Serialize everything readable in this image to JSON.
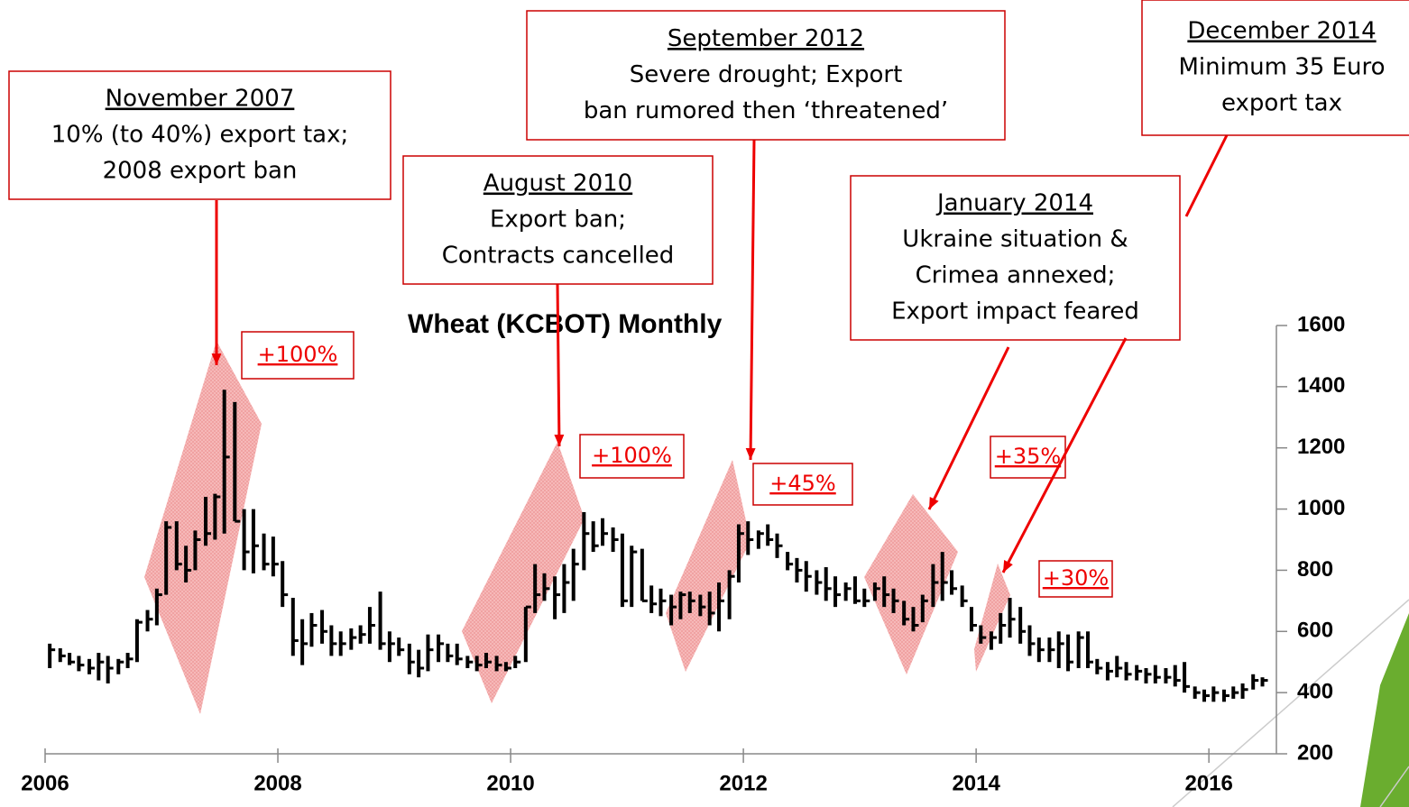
{
  "chart_data": {
    "type": "ohlc",
    "title": "Wheat (KCBOT) Monthly",
    "color": "#000000",
    "xlim": [
      2006,
      2016.58
    ],
    "xticks": [
      2006,
      2008,
      2010,
      2012,
      2014,
      2016
    ],
    "ylim": [
      200,
      1600
    ],
    "yticks": [
      200,
      400,
      600,
      800,
      1000,
      1200,
      1400,
      1600
    ],
    "x": [
      2006.04,
      2006.13,
      2006.21,
      2006.29,
      2006.38,
      2006.46,
      2006.54,
      2006.63,
      2006.71,
      2006.79,
      2006.88,
      2006.96,
      2007.04,
      2007.13,
      2007.21,
      2007.29,
      2007.38,
      2007.46,
      2007.54,
      2007.63,
      2007.71,
      2007.79,
      2007.88,
      2007.96,
      2008.04,
      2008.13,
      2008.21,
      2008.29,
      2008.38,
      2008.46,
      2008.54,
      2008.63,
      2008.71,
      2008.79,
      2008.88,
      2008.96,
      2009.04,
      2009.13,
      2009.21,
      2009.29,
      2009.38,
      2009.46,
      2009.54,
      2009.63,
      2009.71,
      2009.79,
      2009.88,
      2009.96,
      2010.04,
      2010.13,
      2010.21,
      2010.29,
      2010.38,
      2010.46,
      2010.54,
      2010.63,
      2010.71,
      2010.79,
      2010.88,
      2010.96,
      2011.04,
      2011.13,
      2011.21,
      2011.29,
      2011.38,
      2011.46,
      2011.54,
      2011.63,
      2011.71,
      2011.79,
      2011.88,
      2011.96,
      2012.04,
      2012.13,
      2012.21,
      2012.29,
      2012.38,
      2012.46,
      2012.54,
      2012.63,
      2012.71,
      2012.79,
      2012.88,
      2012.96,
      2013.04,
      2013.13,
      2013.21,
      2013.29,
      2013.38,
      2013.46,
      2013.54,
      2013.63,
      2013.71,
      2013.79,
      2013.88,
      2013.96,
      2014.04,
      2014.13,
      2014.21,
      2014.29,
      2014.38,
      2014.46,
      2014.54,
      2014.63,
      2014.71,
      2014.79,
      2014.88,
      2014.96,
      2015.04,
      2015.13,
      2015.21,
      2015.29,
      2015.38,
      2015.46,
      2015.54,
      2015.63,
      2015.71,
      2015.79,
      2015.88,
      2015.96,
      2016.04,
      2016.13,
      2016.21,
      2016.29,
      2016.38,
      2016.46
    ],
    "high": [
      560,
      545,
      530,
      520,
      510,
      530,
      520,
      510,
      530,
      640,
      670,
      740,
      960,
      960,
      880,
      930,
      1040,
      1050,
      1390,
      1350,
      1000,
      1000,
      920,
      910,
      830,
      710,
      640,
      660,
      670,
      620,
      600,
      610,
      620,
      680,
      730,
      600,
      580,
      560,
      540,
      590,
      590,
      560,
      560,
      520,
      520,
      530,
      520,
      500,
      520,
      680,
      820,
      790,
      780,
      820,
      870,
      990,
      960,
      970,
      940,
      920,
      880,
      870,
      750,
      740,
      720,
      730,
      730,
      720,
      730,
      760,
      800,
      950,
      960,
      930,
      950,
      920,
      860,
      840,
      830,
      800,
      810,
      780,
      760,
      780,
      740,
      760,
      780,
      740,
      700,
      680,
      720,
      820,
      860,
      800,
      750,
      680,
      620,
      600,
      660,
      710,
      680,
      620,
      580,
      580,
      600,
      590,
      600,
      600,
      510,
      500,
      520,
      500,
      490,
      480,
      490,
      480,
      490,
      500,
      420,
      410,
      420,
      410,
      420,
      430,
      460,
      450
    ],
    "low": [
      480,
      500,
      490,
      470,
      460,
      440,
      430,
      460,
      480,
      500,
      600,
      620,
      720,
      800,
      760,
      800,
      880,
      900,
      920,
      960,
      800,
      790,
      800,
      780,
      680,
      520,
      490,
      550,
      560,
      520,
      520,
      540,
      560,
      560,
      540,
      500,
      520,
      460,
      450,
      470,
      500,
      500,
      490,
      480,
      470,
      480,
      470,
      470,
      480,
      500,
      660,
      700,
      640,
      660,
      700,
      800,
      860,
      880,
      860,
      680,
      680,
      700,
      660,
      650,
      620,
      640,
      660,
      650,
      620,
      600,
      640,
      760,
      850,
      870,
      880,
      840,
      800,
      760,
      730,
      720,
      700,
      680,
      700,
      690,
      680,
      700,
      680,
      660,
      620,
      600,
      630,
      680,
      700,
      720,
      680,
      600,
      560,
      540,
      560,
      580,
      560,
      520,
      500,
      500,
      480,
      470,
      480,
      480,
      460,
      440,
      450,
      440,
      440,
      430,
      430,
      430,
      420,
      400,
      380,
      370,
      370,
      370,
      380,
      380,
      410,
      420
    ],
    "close": [
      540,
      520,
      500,
      490,
      480,
      500,
      480,
      500,
      510,
      630,
      640,
      720,
      940,
      820,
      800,
      900,
      920,
      1040,
      1170,
      960,
      860,
      880,
      820,
      820,
      720,
      570,
      560,
      620,
      600,
      560,
      560,
      580,
      590,
      620,
      560,
      560,
      540,
      500,
      480,
      540,
      560,
      520,
      510,
      500,
      490,
      500,
      490,
      480,
      500,
      680,
      720,
      740,
      720,
      760,
      820,
      920,
      880,
      920,
      900,
      700,
      860,
      700,
      690,
      700,
      680,
      720,
      700,
      680,
      660,
      700,
      780,
      920,
      900,
      920,
      900,
      880,
      820,
      800,
      780,
      760,
      740,
      720,
      740,
      700,
      700,
      740,
      720,
      700,
      640,
      620,
      700,
      760,
      760,
      740,
      700,
      620,
      580,
      580,
      620,
      640,
      600,
      560,
      540,
      540,
      560,
      500,
      580,
      500,
      480,
      470,
      480,
      460,
      470,
      460,
      450,
      450,
      440,
      420,
      400,
      390,
      400,
      390,
      400,
      410,
      440,
      440
    ],
    "annotations": [
      {
        "date": "November  2007",
        "text": [
          "10% (to 40%) export tax;",
          "2008 export ban"
        ],
        "change": "+100%"
      },
      {
        "date": "August 2010",
        "text": [
          "Export ban;",
          "Contracts cancelled"
        ],
        "change": "+100%"
      },
      {
        "date": "September  2012",
        "text": [
          "Severe drought;  Export",
          "ban rumored then ‘threatened’"
        ],
        "change": "+45%"
      },
      {
        "date": "January  2014",
        "text": [
          "Ukraine situation &",
          "Crimea annexed;",
          "Export impact feared"
        ],
        "change": "+35%"
      },
      {
        "date": "December  2014",
        "text": [
          "Minimum 35 Euro",
          "export tax"
        ],
        "change": "+30%"
      }
    ]
  }
}
